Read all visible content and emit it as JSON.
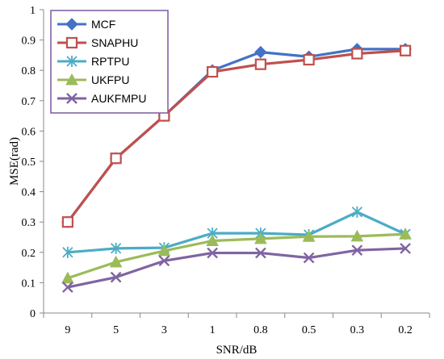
{
  "chart_data": {
    "type": "line",
    "xlabel": "SNR/dB",
    "ylabel": "MSE(rad)",
    "categories": [
      "9",
      "5",
      "3",
      "1",
      "0.8",
      "0.5",
      "0.3",
      "0.2"
    ],
    "ylim": [
      0,
      1
    ],
    "yticks": [
      "0",
      "0.1",
      "0.2",
      "0.3",
      "0.4",
      "0.5",
      "0.6",
      "0.7",
      "0.8",
      "0.9",
      "1"
    ],
    "grid": false,
    "legend": "top-left",
    "series": [
      {
        "name": "MCF",
        "color": "#4472C4",
        "marker": "diamond",
        "values": [
          0.3,
          0.51,
          0.65,
          0.8,
          0.86,
          0.845,
          0.87,
          0.87
        ]
      },
      {
        "name": "SNAPHU",
        "color": "#C0504D",
        "marker": "square",
        "values": [
          0.3,
          0.51,
          0.65,
          0.795,
          0.82,
          0.835,
          0.855,
          0.865
        ]
      },
      {
        "name": "RPTPU",
        "color": "#4BACC6",
        "marker": "asterisk",
        "values": [
          0.2,
          0.213,
          0.215,
          0.263,
          0.263,
          0.258,
          0.333,
          0.26
        ]
      },
      {
        "name": "UKFPU",
        "color": "#9BBB59",
        "marker": "triangle",
        "values": [
          0.115,
          0.168,
          0.205,
          0.238,
          0.245,
          0.252,
          0.253,
          0.26
        ]
      },
      {
        "name": "AUKFMPU",
        "color": "#8064A2",
        "marker": "x",
        "values": [
          0.085,
          0.118,
          0.172,
          0.198,
          0.198,
          0.182,
          0.207,
          0.213
        ]
      }
    ]
  }
}
